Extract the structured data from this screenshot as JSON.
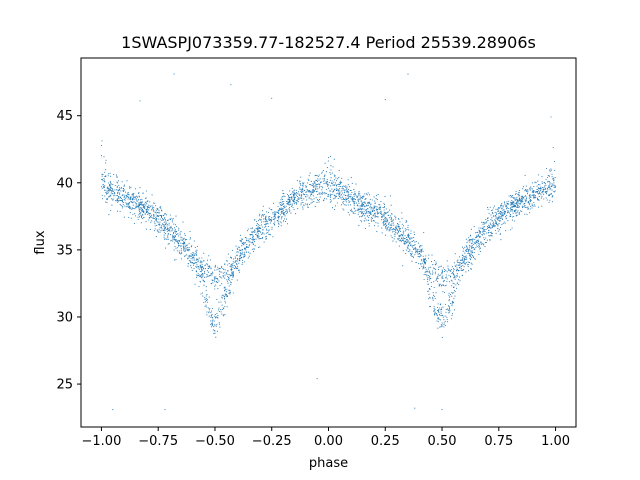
{
  "chart_data": {
    "type": "scatter",
    "title": "1SWASPJ073359.77-182527.4 Period 25539.28906s",
    "xlabel": "phase",
    "ylabel": "flux",
    "xlim": [
      -1.09,
      1.09
    ],
    "ylim": [
      21.8,
      49.3
    ],
    "xticks": [
      -1.0,
      -0.75,
      -0.5,
      -0.25,
      0.0,
      0.25,
      0.5,
      0.75,
      1.0
    ],
    "xtick_labels": [
      "−1.00",
      "−0.75",
      "−0.50",
      "−0.25",
      "0.00",
      "0.25",
      "0.50",
      "0.75",
      "1.00"
    ],
    "yticks": [
      25,
      30,
      35,
      40,
      45
    ],
    "ytick_labels": [
      "25",
      "30",
      "35",
      "40",
      "45"
    ],
    "grid": false,
    "marker_color": "#1f77b4",
    "series": [
      {
        "name": "",
        "x": [
          -1.0,
          -0.95,
          -0.9,
          -0.85,
          -0.8,
          -0.75,
          -0.7,
          -0.65,
          -0.6,
          -0.55,
          -0.5,
          -0.45,
          -0.4,
          -0.35,
          -0.3,
          -0.25,
          -0.2,
          -0.15,
          -0.1,
          -0.05,
          0.0,
          0.05,
          0.1,
          0.15,
          0.2,
          0.25,
          0.3,
          0.35,
          0.4,
          0.45,
          0.5,
          0.55,
          0.6,
          0.65,
          0.7,
          0.75,
          0.8,
          0.85,
          0.9,
          0.95,
          1.0
        ],
        "y": [
          39.7,
          39.4,
          38.9,
          38.5,
          38.0,
          37.3,
          36.5,
          35.5,
          34.6,
          33.6,
          32.9,
          33.2,
          34.3,
          35.6,
          36.6,
          37.4,
          38.1,
          38.8,
          39.3,
          39.7,
          39.6,
          39.3,
          38.8,
          38.3,
          37.9,
          37.4,
          36.6,
          35.7,
          34.7,
          33.7,
          32.9,
          33.2,
          34.3,
          35.6,
          36.6,
          37.4,
          38.1,
          38.6,
          39.1,
          39.5,
          39.7
        ]
      }
    ],
    "outliers": {
      "x": [
        -0.68,
        -0.43,
        -0.25,
        0.35,
        0.25,
        -0.72,
        -0.95,
        0.98,
        0.38,
        -0.83,
        0.5,
        -0.05
      ],
      "y": [
        48.1,
        47.3,
        46.3,
        48.1,
        46.2,
        23.1,
        23.1,
        44.9,
        23.2,
        46.1,
        23.1,
        25.4
      ]
    },
    "dip_values": [
      {
        "x": -0.5,
        "y": 29.4
      },
      {
        "x": 0.5,
        "y": 29.4
      }
    ]
  }
}
